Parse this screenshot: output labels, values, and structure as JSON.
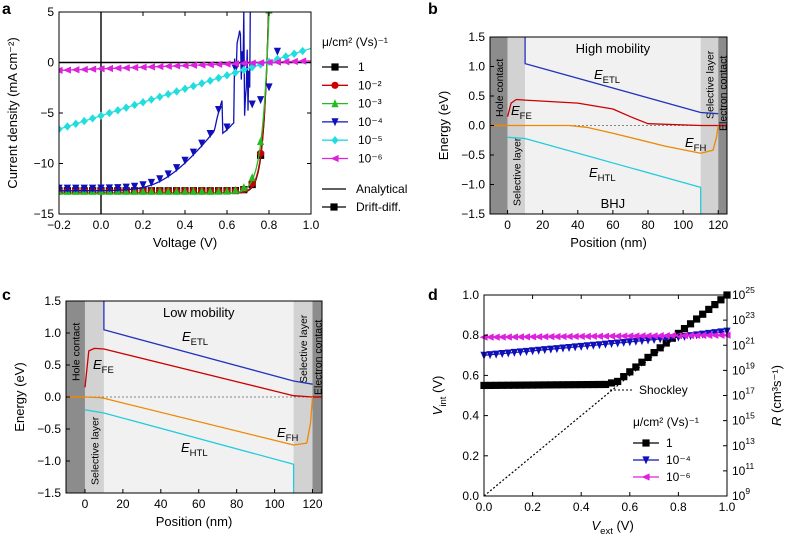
{
  "colors": {
    "s1": "#000000",
    "s2": "#cc0000",
    "s3": "#22bb22",
    "s4": "#1010bb",
    "s5": "#22dddd",
    "s6": "#dd22dd",
    "etl": "#2233bb",
    "fe": "#cc0000",
    "fh": "#ee8800",
    "htl": "#22ccdd",
    "dark": "#8c8c8c",
    "sel": "#d2d2d2",
    "bulk": "#f1f1f1"
  },
  "chart_data": [
    {
      "panel": "a",
      "type": "line",
      "xlabel": "Voltage (V)",
      "ylabel": "Current density (mA cm⁻²)",
      "xlim": [
        -0.2,
        1.0
      ],
      "ylim": [
        -15,
        5
      ],
      "xticks": [
        "-0.2",
        "0.0",
        "0.2",
        "0.4",
        "0.6",
        "0.8",
        "1.0"
      ],
      "yticks": [
        "-15",
        "-10",
        "-5",
        "0",
        "5"
      ],
      "legend_title": "μ/cm² (Vs)⁻¹",
      "legend_style": [
        "Analytical",
        "Drift-diff."
      ],
      "series": [
        {
          "name": "1",
          "label": "1",
          "marker": "square",
          "color": "#000000",
          "jsc": -12.95,
          "voc": 0.79,
          "n": 0.023,
          "rs": 0.0
        },
        {
          "name": "1e-2",
          "label": "10⁻²",
          "marker": "circle",
          "color": "#cc0000",
          "jsc": -12.95,
          "voc": 0.79,
          "n": 0.024,
          "rs": 0.0
        },
        {
          "name": "1e-3",
          "label": "10⁻³",
          "marker": "triangle-up",
          "color": "#22bb22",
          "jsc": -13.0,
          "voc": 0.79,
          "n": 0.031,
          "rs": 0.0
        },
        {
          "name": "1e-4",
          "label": "10⁻⁴",
          "marker": "triangle-down",
          "color": "#1010bb",
          "jsc": -12.7,
          "voc": 0.79,
          "n": 0.06,
          "rs": 3.0
        },
        {
          "name": "1e-5",
          "label": "10⁻⁵",
          "marker": "diamond",
          "color": "#22dddd",
          "slope": 6.67,
          "voc": 0.79
        },
        {
          "name": "1e-6",
          "label": "10⁻⁶",
          "marker": "triangle-left",
          "color": "#dd22dd",
          "slope": 0.79,
          "voc": 0.79
        }
      ]
    },
    {
      "panel": "b",
      "type": "line",
      "title": "High mobility",
      "bottom_text": "BHJ",
      "xlabel": "Position (nm)",
      "ylabel": "Energy (eV)",
      "xlim": [
        -10,
        125
      ],
      "ylim": [
        -1.5,
        1.5
      ],
      "xticks": [
        "0",
        "20",
        "40",
        "60",
        "80",
        "100",
        "120"
      ],
      "yticks": [
        "-1.5",
        "-1.0",
        "-0.5",
        "0.0",
        "0.5",
        "1.0",
        "1.5"
      ],
      "regions": {
        "hole_contact": "Hole contact",
        "selective_left": "Selective layer",
        "selective_right": "Selective layer",
        "electron_contact": "Electron contact"
      },
      "labels": {
        "etl": "ETL",
        "fe": "FE",
        "fh": "FH",
        "htl": "HTL",
        "e": "E"
      },
      "series": [
        {
          "name": "E_ETL",
          "color": "#2233bb",
          "x": [
            10,
            10,
            110,
            120
          ],
          "y": [
            1.5,
            1.05,
            0.22,
            0.2
          ]
        },
        {
          "name": "E_FE",
          "color": "#cc0000",
          "x": [
            0,
            2,
            5,
            10,
            40,
            60,
            70,
            80,
            110,
            120
          ],
          "y": [
            0.15,
            0.38,
            0.44,
            0.43,
            0.38,
            0.28,
            0.15,
            0.03,
            0.0,
            0.0
          ]
        },
        {
          "name": "E_FH",
          "color": "#ee8800",
          "x": [
            0,
            10,
            35,
            45,
            60,
            90,
            110,
            117,
            119,
            120
          ],
          "y": [
            0.0,
            0.0,
            0.0,
            -0.03,
            -0.13,
            -0.35,
            -0.47,
            -0.42,
            -0.2,
            0.0
          ]
        },
        {
          "name": "E_HTL",
          "color": "#22ccdd",
          "x": [
            0,
            10,
            110,
            110
          ],
          "y": [
            -0.2,
            -0.22,
            -1.05,
            -1.5
          ]
        }
      ]
    },
    {
      "panel": "c",
      "type": "line",
      "title": "Low mobility",
      "xlabel": "Position (nm)",
      "ylabel": "Energy (eV)",
      "xlim": [
        -10,
        125
      ],
      "ylim": [
        -1.5,
        1.5
      ],
      "xticks": [
        "0",
        "20",
        "40",
        "60",
        "80",
        "100",
        "120"
      ],
      "yticks": [
        "-1.5",
        "-1.0",
        "-0.5",
        "0.0",
        "0.5",
        "1.0",
        "1.5"
      ],
      "regions": {
        "hole_contact": "Hole contact",
        "selective_left": "Selective layer",
        "selective_right": "Selective layer",
        "electron_contact": "Electron contact"
      },
      "labels": {
        "etl": "ETL",
        "fe": "FE",
        "fh": "FH",
        "htl": "HTL",
        "e": "E"
      },
      "series": [
        {
          "name": "E_ETL",
          "color": "#2233bb",
          "x": [
            10,
            10,
            110,
            120
          ],
          "y": [
            1.5,
            1.05,
            0.25,
            0.2
          ]
        },
        {
          "name": "E_FE",
          "color": "#cc0000",
          "x": [
            0,
            2,
            5,
            10,
            110,
            120
          ],
          "y": [
            0.15,
            0.72,
            0.76,
            0.75,
            0.02,
            0.0
          ]
        },
        {
          "name": "E_FH",
          "color": "#ee8800",
          "x": [
            0,
            8,
            10,
            110,
            117,
            119,
            120
          ],
          "y": [
            0.0,
            -0.01,
            -0.02,
            -0.75,
            -0.72,
            -0.4,
            0.0
          ]
        },
        {
          "name": "E_HTL",
          "color": "#22ccdd",
          "x": [
            0,
            10,
            110,
            110
          ],
          "y": [
            -0.2,
            -0.25,
            -1.05,
            -1.5
          ]
        }
      ]
    },
    {
      "panel": "d",
      "type": "line",
      "xlabel": "ext",
      "ylabel": "int",
      "ylabel_right": "(cm³s⁻¹)",
      "xlim": [
        0,
        1.0
      ],
      "ylim": [
        0,
        1.0
      ],
      "xticks": [
        "0.0",
        "0.2",
        "0.4",
        "0.6",
        "0.8",
        "1.0"
      ],
      "yticks": [
        "0.0",
        "0.2",
        "0.4",
        "0.6",
        "0.8",
        "1.0"
      ],
      "right_log_range": [
        9,
        25
      ],
      "right_ticks": [
        "9",
        "11",
        "13",
        "15",
        "17",
        "19",
        "21",
        "23",
        "25"
      ],
      "shockley_label": "Shockley",
      "legend_title": "μ/cm² (Vs)⁻¹",
      "series": [
        {
          "name": "1",
          "label": "1",
          "marker": "square",
          "color": "#000000",
          "x": [
            0,
            0.5,
            0.55,
            1.0
          ],
          "y": [
            0.55,
            0.555,
            0.57,
            1.0
          ]
        },
        {
          "name": "1e-4",
          "label": "10⁻⁴",
          "marker": "triangle-down",
          "color": "#1010bb",
          "x": [
            0,
            0.5,
            0.8,
            1.0
          ],
          "y": [
            0.7,
            0.755,
            0.79,
            0.82
          ]
        },
        {
          "name": "1e-6",
          "label": "10⁻⁶",
          "marker": "triangle-left",
          "color": "#dd22dd",
          "x": [
            0,
            1.0
          ],
          "y": [
            0.79,
            0.8
          ]
        },
        {
          "name": "Shockley",
          "style": "dotted",
          "color": "#000000",
          "x": [
            0,
            1.0
          ],
          "y": [
            0,
            1.0
          ]
        }
      ]
    }
  ],
  "panel_letters": {
    "a": "a",
    "b": "b",
    "c": "c",
    "d": "d"
  }
}
